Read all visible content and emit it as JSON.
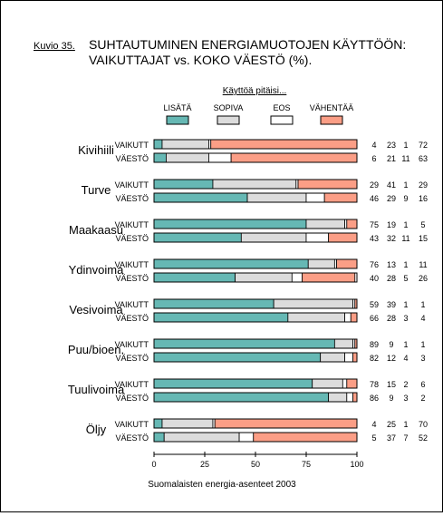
{
  "figure_label": "Kuvio 35.",
  "title_line1": "SUHTAUTUMINEN ENERGIAMUOTOJEN KÄYTTÖÖN:",
  "title_line2": "VAIKUTTAJAT vs. KOKO VÄESTÖ (%).",
  "source": "Suomalaisten energia-asenteet 2003",
  "colors": {
    "lisata": "#66b8b4",
    "sopiva": "#dcdcdc",
    "eos": "#ffffff",
    "vahentaa": "#fb9e86"
  },
  "chart_data": {
    "type": "bar",
    "stacked": true,
    "orientation": "horizontal",
    "legend_title": "Käyttöä pitäisi...",
    "legend_placement": "top",
    "series_names": [
      "LISÄTÄ",
      "SOPIVA",
      "EOS",
      "VÄHENTÄÄ"
    ],
    "xlim": [
      0,
      100
    ],
    "xticks": [
      0,
      25,
      50,
      75,
      100
    ],
    "grid": false,
    "groups": [
      {
        "name": "Kivihiili",
        "rows": [
          {
            "label": "VAIKUTT",
            "values": [
              4,
              23,
              1,
              72
            ]
          },
          {
            "label": "VÄESTÖ",
            "values": [
              6,
              21,
              11,
              63
            ]
          }
        ]
      },
      {
        "name": "Turve",
        "rows": [
          {
            "label": "VAIKUTT",
            "values": [
              29,
              41,
              1,
              29
            ]
          },
          {
            "label": "VÄESTÖ",
            "values": [
              46,
              29,
              9,
              16
            ]
          }
        ]
      },
      {
        "name": "Maakaasu",
        "rows": [
          {
            "label": "VAIKUTT",
            "values": [
              75,
              19,
              1,
              5
            ]
          },
          {
            "label": "VÄESTÖ",
            "values": [
              43,
              32,
              11,
              15
            ]
          }
        ]
      },
      {
        "name": "Ydinvoima",
        "rows": [
          {
            "label": "VAIKUTT",
            "values": [
              76,
              13,
              1,
              11
            ]
          },
          {
            "label": "VÄESTÖ",
            "values": [
              40,
              28,
              5,
              26
            ]
          }
        ]
      },
      {
        "name": "Vesivoima",
        "rows": [
          {
            "label": "VAIKUTT",
            "values": [
              59,
              39,
              1,
              1
            ]
          },
          {
            "label": "VÄESTÖ",
            "values": [
              66,
              28,
              3,
              4
            ]
          }
        ]
      },
      {
        "name": "Puu/bioen.",
        "rows": [
          {
            "label": "VAIKUTT",
            "values": [
              89,
              9,
              1,
              1
            ]
          },
          {
            "label": "VÄESTÖ",
            "values": [
              82,
              12,
              4,
              3
            ]
          }
        ]
      },
      {
        "name": "Tuulivoima",
        "rows": [
          {
            "label": "VAIKUTT",
            "values": [
              78,
              15,
              2,
              6
            ]
          },
          {
            "label": "VÄESTÖ",
            "values": [
              86,
              9,
              3,
              2
            ]
          }
        ]
      },
      {
        "name": "Öljy",
        "rows": [
          {
            "label": "VAIKUTT",
            "values": [
              4,
              25,
              1,
              70
            ]
          },
          {
            "label": "VÄESTÖ",
            "values": [
              5,
              37,
              7,
              52
            ]
          }
        ]
      }
    ]
  }
}
